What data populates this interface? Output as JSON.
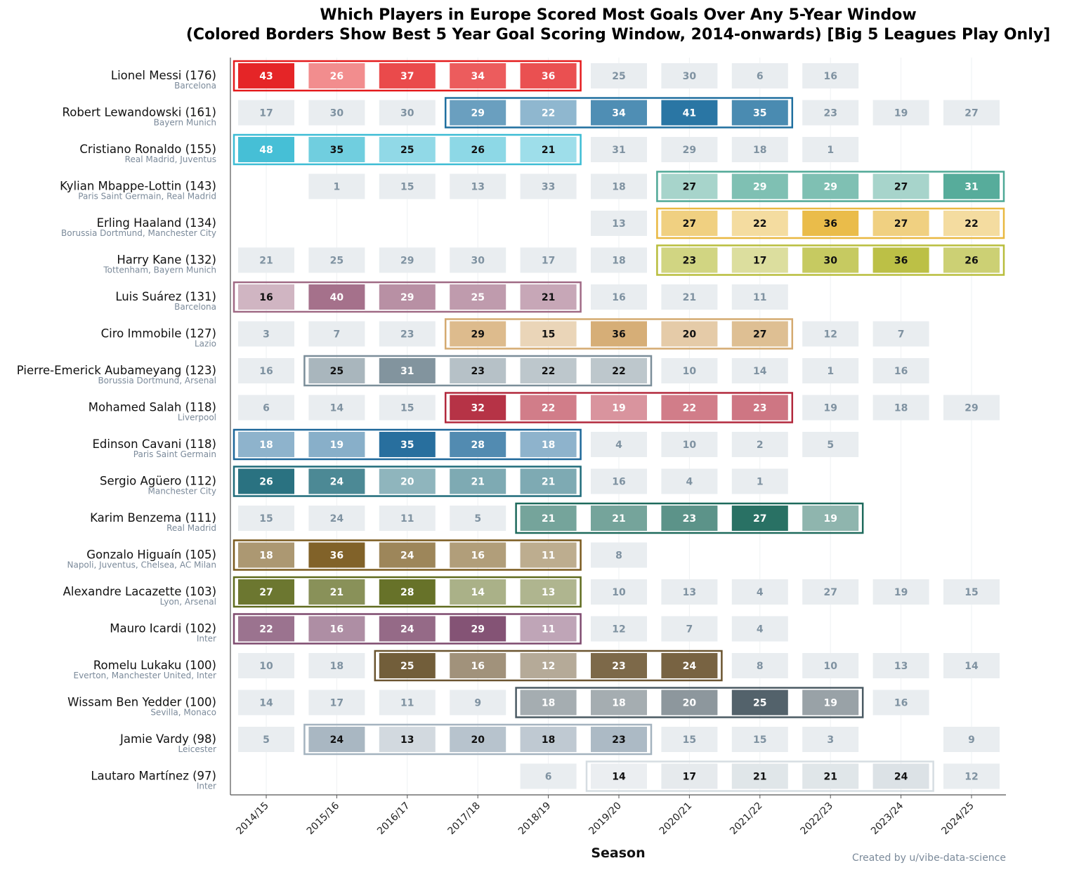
{
  "chart_data": {
    "type": "heatmap",
    "title": "Which Players in Europe Scored Most Goals Over Any 5-Year Window",
    "subtitle": "(Colored Borders Show Best 5 Year Goal Scoring Window, 2014-onwards) [Big 5 Leagues Play Only]",
    "xlabel": "Season",
    "credit": "Created by u/vibe-data-science",
    "seasons": [
      "2014/15",
      "2015/16",
      "2016/17",
      "2017/18",
      "2018/19",
      "2019/20",
      "2020/21",
      "2021/22",
      "2022/23",
      "2023/24",
      "2024/25"
    ],
    "players": [
      {
        "label": "Lionel Messi (176)",
        "clubs": "Barcelona",
        "goals": [
          43,
          26,
          37,
          34,
          36,
          25,
          30,
          6,
          16,
          null,
          null
        ],
        "window_start": 0,
        "color": "#e41a1c"
      },
      {
        "label": "Robert Lewandowski (161)",
        "clubs": "Bayern Munich",
        "goals": [
          17,
          30,
          30,
          29,
          22,
          34,
          41,
          35,
          23,
          19,
          27
        ],
        "window_start": 3,
        "color": "#1f6f9f"
      },
      {
        "label": "Cristiano Ronaldo (155)",
        "clubs": "Real Madrid, Juventus",
        "goals": [
          48,
          35,
          25,
          26,
          21,
          31,
          29,
          18,
          1,
          null,
          null
        ],
        "window_start": 0,
        "color": "#3cbcd4"
      },
      {
        "label": "Kylian Mbappe-Lottin (143)",
        "clubs": "Paris Saint Germain, Real Madrid",
        "goals": [
          null,
          1,
          15,
          13,
          33,
          18,
          27,
          29,
          29,
          27,
          31
        ],
        "window_start": 6,
        "color": "#4ea896"
      },
      {
        "label": "Erling Haaland (134)",
        "clubs": "Borussia Dortmund, Manchester City",
        "goals": [
          null,
          null,
          null,
          null,
          null,
          13,
          27,
          22,
          36,
          27,
          22
        ],
        "window_start": 6,
        "color": "#e9b840"
      },
      {
        "label": "Harry Kane (132)",
        "clubs": "Tottenham, Bayern Munich",
        "goals": [
          21,
          25,
          29,
          30,
          17,
          18,
          23,
          17,
          30,
          36,
          26
        ],
        "window_start": 6,
        "color": "#b8bd3c"
      },
      {
        "label": "Luis Suárez (131)",
        "clubs": "Barcelona",
        "goals": [
          16,
          40,
          29,
          25,
          21,
          16,
          21,
          11,
          null,
          null,
          null
        ],
        "window_start": 0,
        "color": "#a06a85"
      },
      {
        "label": "Ciro Immobile (127)",
        "clubs": "Lazio",
        "goals": [
          3,
          7,
          23,
          29,
          15,
          36,
          20,
          27,
          12,
          7,
          null
        ],
        "window_start": 3,
        "color": "#d4aa70"
      },
      {
        "label": "Pierre-Emerick Aubameyang (123)",
        "clubs": "Borussia Dortmund, Arsenal",
        "goals": [
          16,
          25,
          31,
          23,
          22,
          22,
          10,
          14,
          1,
          16,
          null
        ],
        "window_start": 1,
        "color": "#7b8e99"
      },
      {
        "label": "Mohamed Salah (118)",
        "clubs": "Liverpool",
        "goals": [
          6,
          14,
          15,
          32,
          22,
          19,
          22,
          23,
          19,
          18,
          29
        ],
        "window_start": 3,
        "color": "#b2283c"
      },
      {
        "label": "Edinson Cavani (118)",
        "clubs": "Paris Saint Germain",
        "goals": [
          18,
          19,
          35,
          28,
          18,
          4,
          10,
          2,
          5,
          null,
          null
        ],
        "window_start": 0,
        "color": "#1d6799"
      },
      {
        "label": "Sergio Agüero (112)",
        "clubs": "Manchester City",
        "goals": [
          26,
          24,
          20,
          21,
          21,
          16,
          4,
          1,
          null,
          null,
          null
        ],
        "window_start": 0,
        "color": "#1f6b7a"
      },
      {
        "label": "Karim Benzema (111)",
        "clubs": "Real Madrid",
        "goals": [
          15,
          24,
          11,
          5,
          21,
          21,
          23,
          27,
          19,
          null,
          null
        ],
        "window_start": 4,
        "color": "#1e6a5c"
      },
      {
        "label": "Gonzalo Higuaín (105)",
        "clubs": "Napoli, Juventus, Chelsea, AC Milan",
        "goals": [
          18,
          36,
          24,
          16,
          11,
          8,
          null,
          null,
          null,
          null,
          null
        ],
        "window_start": 0,
        "color": "#7a5a1e"
      },
      {
        "label": "Alexandre Lacazette (103)",
        "clubs": "Lyon, Arsenal",
        "goals": [
          27,
          21,
          28,
          14,
          13,
          10,
          13,
          4,
          27,
          19,
          15
        ],
        "window_start": 0,
        "color": "#5f6b1e"
      },
      {
        "label": "Mauro Icardi (102)",
        "clubs": "Inter",
        "goals": [
          22,
          16,
          24,
          29,
          11,
          12,
          7,
          4,
          null,
          null,
          null
        ],
        "window_start": 0,
        "color": "#7e4a6e"
      },
      {
        "label": "Romelu Lukaku (100)",
        "clubs": "Everton, Manchester United, Inter",
        "goals": [
          10,
          18,
          25,
          16,
          12,
          23,
          24,
          8,
          10,
          13,
          14
        ],
        "window_start": 2,
        "color": "#6b5530"
      },
      {
        "label": "Wissam Ben Yedder (100)",
        "clubs": "Sevilla, Monaco",
        "goals": [
          14,
          17,
          11,
          9,
          18,
          18,
          20,
          25,
          19,
          16,
          null
        ],
        "window_start": 4,
        "color": "#4a5a63"
      },
      {
        "label": "Jamie Vardy (98)",
        "clubs": "Leicester",
        "goals": [
          5,
          24,
          13,
          20,
          18,
          23,
          15,
          15,
          3,
          null,
          9
        ],
        "window_start": 1,
        "color": "#a4b3bf"
      },
      {
        "label": "Lautaro Martínez (97)",
        "clubs": "Inter",
        "goals": [
          null,
          null,
          null,
          null,
          6,
          14,
          17,
          21,
          21,
          24,
          12
        ],
        "window_start": 5,
        "color": "#d6dde2"
      }
    ]
  }
}
